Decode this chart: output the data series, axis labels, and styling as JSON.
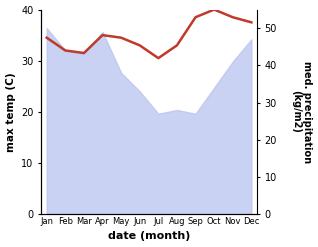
{
  "months": [
    "Jan",
    "Feb",
    "Mar",
    "Apr",
    "May",
    "Jun",
    "Jul",
    "Aug",
    "Sep",
    "Oct",
    "Nov",
    "Dec"
  ],
  "precipitation_right": [
    50,
    44,
    43,
    49,
    38,
    33,
    27,
    28,
    27,
    34,
    41,
    47
  ],
  "temperature": [
    34.5,
    32.0,
    31.5,
    35.0,
    34.5,
    33.0,
    30.5,
    33.0,
    38.5,
    40.0,
    38.5,
    37.5
  ],
  "precip_fill_color": "#b8c4ee",
  "temp_color": "#c0392b",
  "left_ylim": [
    0,
    40
  ],
  "right_ylim": [
    0,
    55
  ],
  "left_yticks": [
    0,
    10,
    20,
    30,
    40
  ],
  "right_yticks": [
    0,
    10,
    20,
    30,
    40,
    50
  ],
  "xlabel": "date (month)",
  "ylabel_left": "max temp (C)",
  "ylabel_right": "med. precipitation\n(kg/m2)",
  "bg_color": "#ffffff"
}
